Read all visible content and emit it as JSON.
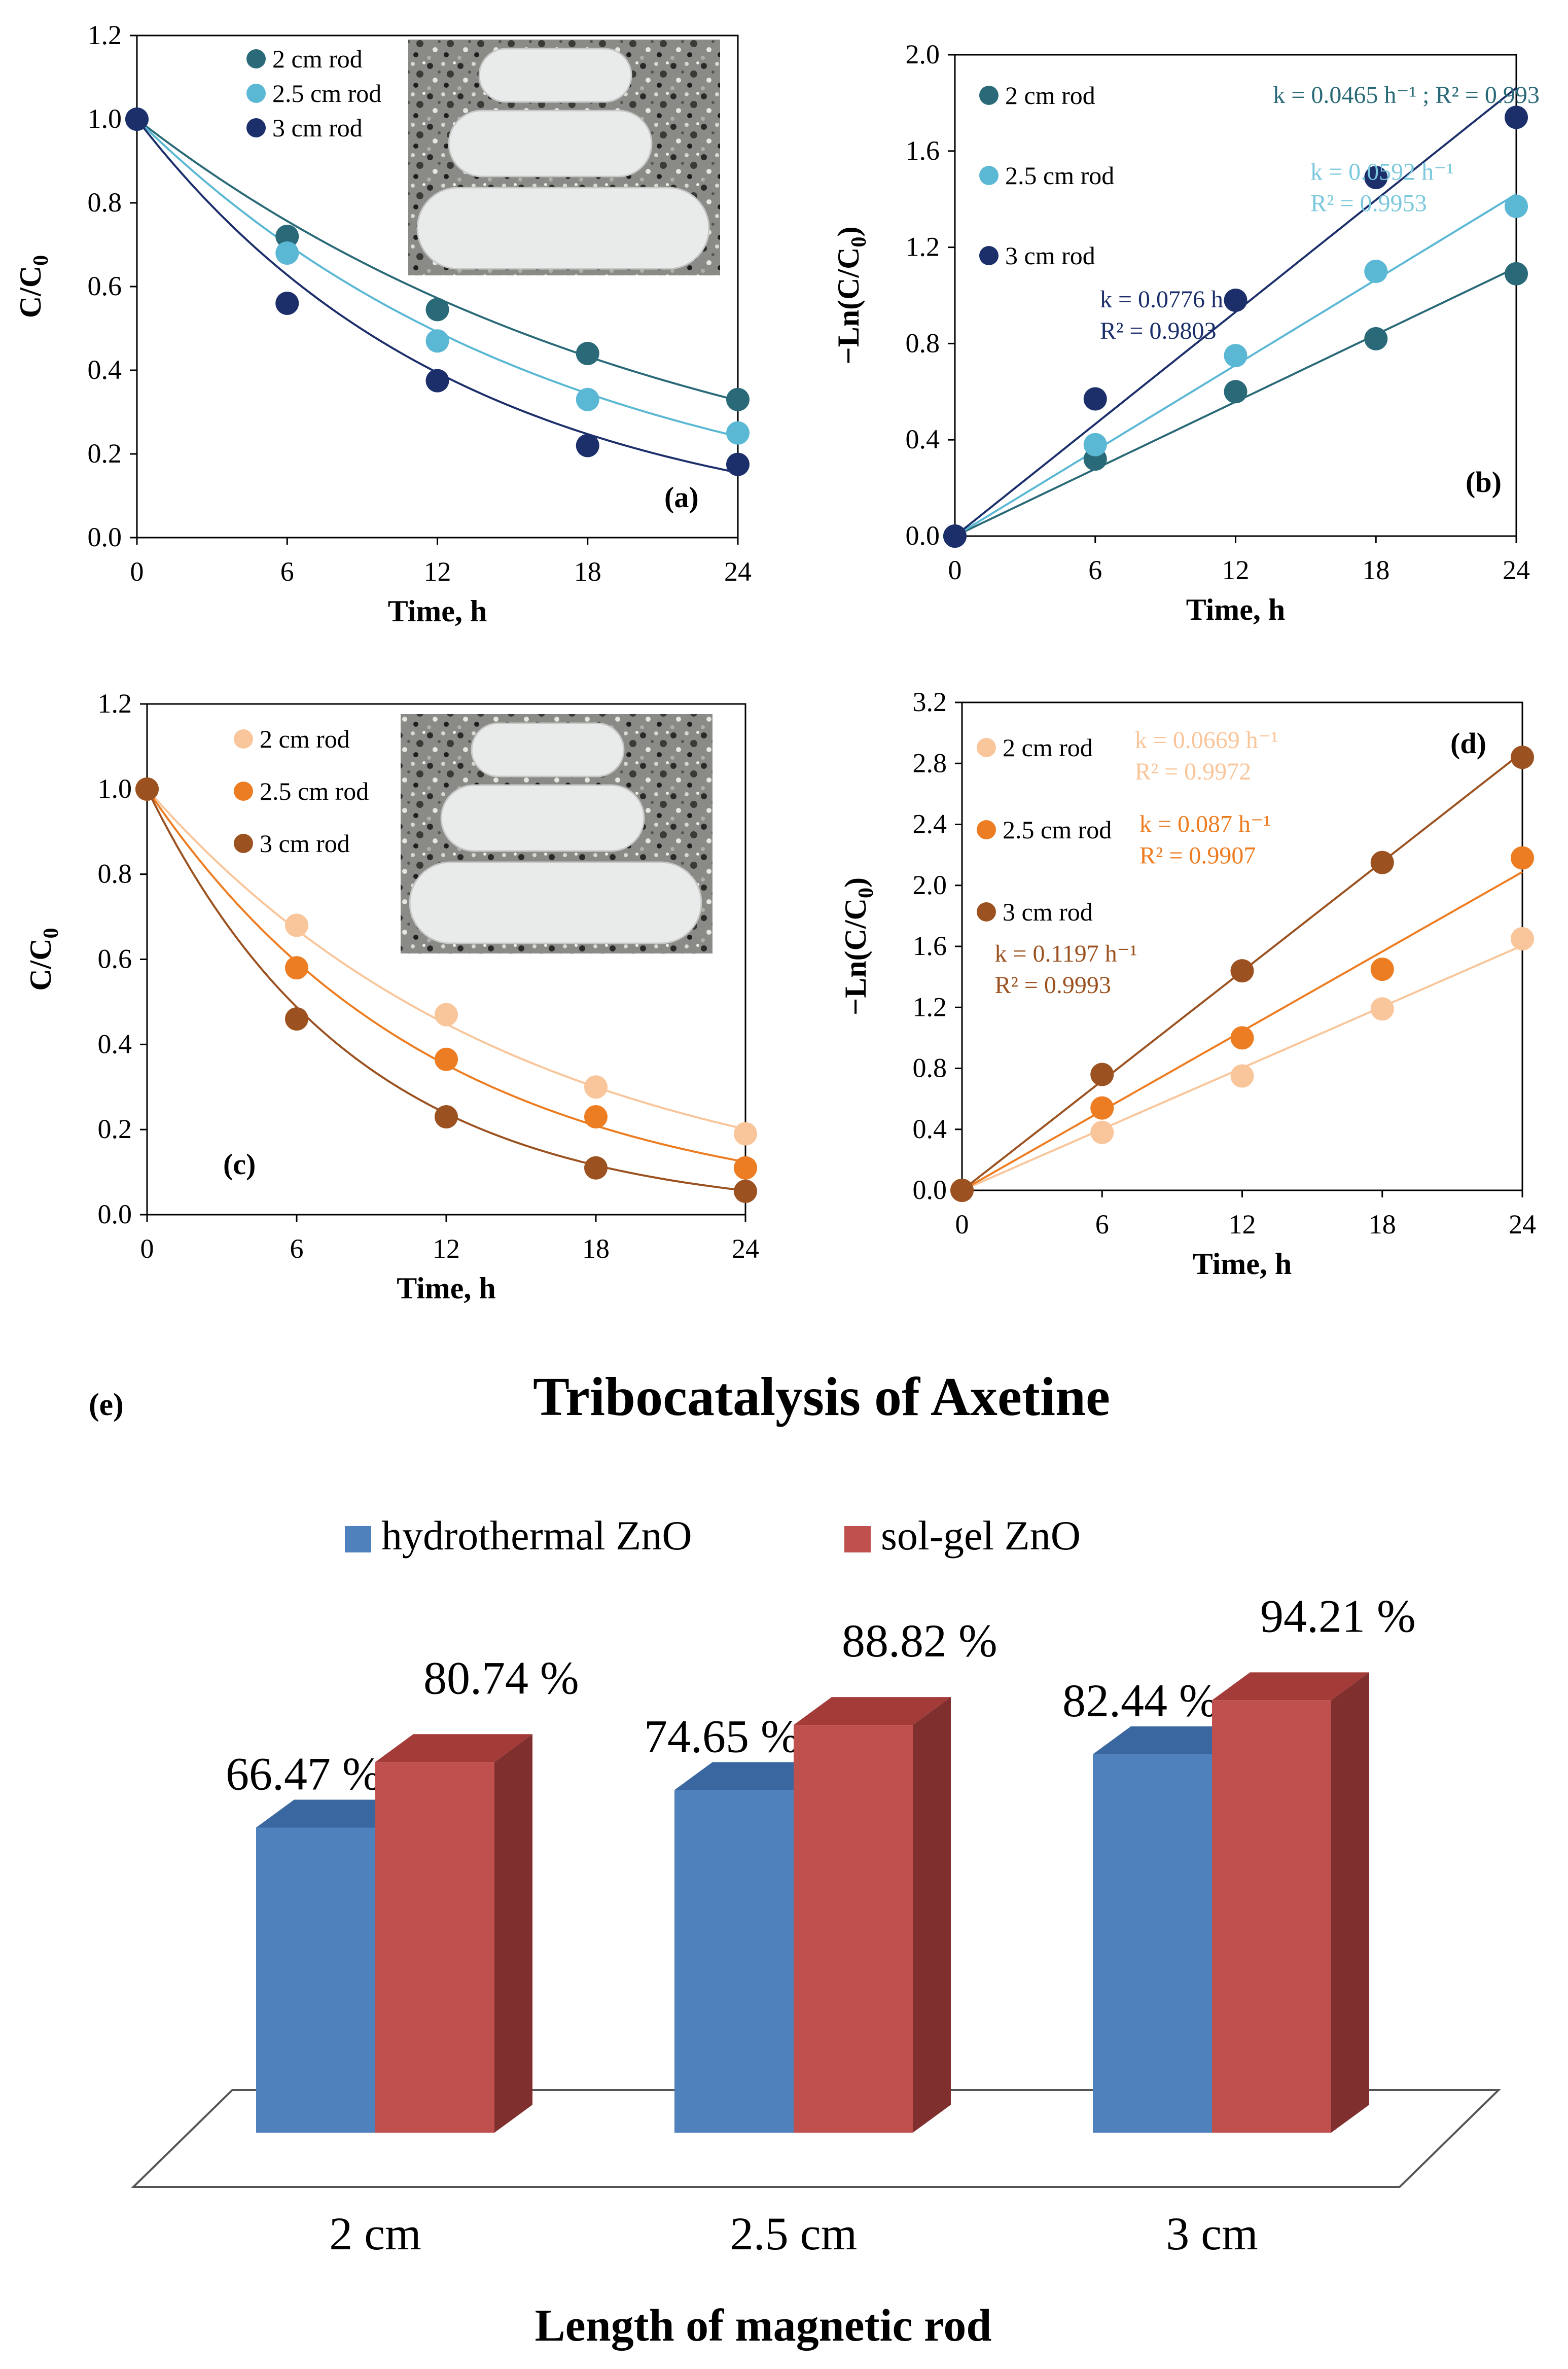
{
  "chart_data": [
    {
      "type": "scatter",
      "panel_label": "(a)",
      "xlabel": "Time, h",
      "ylabel_main": "C/C",
      "ylabel_sub": "0",
      "xlim": [
        0,
        24
      ],
      "ylim": [
        0,
        1.2
      ],
      "xticks": [
        0,
        6,
        12,
        18,
        24
      ],
      "yticks": [
        0.0,
        0.2,
        0.4,
        0.6,
        0.8,
        1.0,
        1.2
      ],
      "ytick_decimals": 1,
      "fit": "exp",
      "has_inset_photo": true,
      "series": [
        {
          "name": "2 cm rod",
          "color": "#2a6a78",
          "x": [
            0,
            6,
            12,
            18,
            24
          ],
          "y": [
            1.0,
            0.72,
            0.545,
            0.44,
            0.33
          ],
          "k": 0.0465
        },
        {
          "name": "2.5 cm rod",
          "color": "#5bb8d4",
          "x": [
            0,
            6,
            12,
            18,
            24
          ],
          "y": [
            1.0,
            0.68,
            0.47,
            0.33,
            0.25
          ],
          "k": 0.0592
        },
        {
          "name": "3 cm rod",
          "color": "#1c2f6b",
          "x": [
            0,
            6,
            12,
            18,
            24
          ],
          "y": [
            1.0,
            0.56,
            0.375,
            0.22,
            0.175
          ],
          "k": 0.0776
        }
      ],
      "annotations": []
    },
    {
      "type": "scatter",
      "panel_label": "(b)",
      "xlabel": "Time, h",
      "ylabel_main": "−Ln(C/C",
      "ylabel_sub": "0",
      "ylabel_tail": ")",
      "xlim": [
        0,
        24
      ],
      "ylim": [
        0,
        2.0
      ],
      "xticks": [
        0,
        6,
        12,
        18,
        24
      ],
      "yticks": [
        0.0,
        0.4,
        0.8,
        1.2,
        1.6,
        2.0
      ],
      "ytick_decimals": 1,
      "fit": "linear",
      "has_inset_photo": false,
      "series": [
        {
          "name": "2 cm rod",
          "color": "#2a6a78",
          "x": [
            0,
            6,
            12,
            18,
            24
          ],
          "y": [
            0.0,
            0.32,
            0.6,
            0.82,
            1.09
          ],
          "k": 0.0465
        },
        {
          "name": "2.5 cm rod",
          "color": "#5bb8d4",
          "x": [
            0,
            6,
            12,
            18,
            24
          ],
          "y": [
            0.0,
            0.38,
            0.75,
            1.1,
            1.37
          ],
          "k": 0.0592
        },
        {
          "name": "3 cm rod",
          "color": "#1c2f6b",
          "x": [
            0,
            6,
            12,
            18,
            24
          ],
          "y": [
            0.0,
            0.57,
            0.98,
            1.49,
            1.74
          ],
          "k": 0.0776
        }
      ],
      "annotations": [
        {
          "lines": [
            "k = 0.0465 h⁻¹ ; R² = 0.993"
          ],
          "color": "#2a6a78",
          "at": [
            13.6,
            1.8
          ]
        },
        {
          "lines": [
            "k = 0.0592 h⁻¹",
            "R² = 0.9953"
          ],
          "color": "#7cc8dc",
          "at": [
            15.2,
            1.48
          ]
        },
        {
          "lines": [
            "k = 0.0776 h⁻¹",
            "R² = 0.9803"
          ],
          "color": "#1c2f6b",
          "at": [
            6.2,
            0.95
          ]
        }
      ]
    },
    {
      "type": "scatter",
      "panel_label": "(c)",
      "xlabel": "Time, h",
      "ylabel_main": "C/C",
      "ylabel_sub": "0",
      "xlim": [
        0,
        24
      ],
      "ylim": [
        0,
        1.2
      ],
      "xticks": [
        0,
        6,
        12,
        18,
        24
      ],
      "yticks": [
        0.0,
        0.2,
        0.4,
        0.6,
        0.8,
        1.0,
        1.2
      ],
      "ytick_decimals": 1,
      "fit": "exp",
      "has_inset_photo": true,
      "series": [
        {
          "name": "2 cm rod",
          "color": "#f9c59a",
          "x": [
            0,
            6,
            12,
            18,
            24
          ],
          "y": [
            1.0,
            0.68,
            0.47,
            0.3,
            0.19
          ],
          "k": 0.0669
        },
        {
          "name": "2.5 cm rod",
          "color": "#ed7d22",
          "x": [
            0,
            6,
            12,
            18,
            24
          ],
          "y": [
            1.0,
            0.58,
            0.365,
            0.23,
            0.11
          ],
          "k": 0.087
        },
        {
          "name": "3 cm rod",
          "color": "#9c5220",
          "x": [
            0,
            6,
            12,
            18,
            24
          ],
          "y": [
            1.0,
            0.46,
            0.23,
            0.11,
            0.055
          ],
          "k": 0.1197
        }
      ],
      "annotations": []
    },
    {
      "type": "scatter",
      "panel_label": "(d)",
      "xlabel": "Time, h",
      "ylabel_main": "−Ln(C/C",
      "ylabel_sub": "0",
      "ylabel_tail": ")",
      "xlim": [
        0,
        24
      ],
      "ylim": [
        0,
        3.2
      ],
      "xticks": [
        0,
        6,
        12,
        18,
        24
      ],
      "yticks": [
        0.0,
        0.4,
        0.8,
        1.2,
        1.6,
        2.0,
        2.4,
        2.8,
        3.2
      ],
      "ytick_decimals": 1,
      "fit": "linear",
      "has_inset_photo": false,
      "series": [
        {
          "name": "2 cm rod",
          "color": "#f9c59a",
          "x": [
            0,
            6,
            12,
            18,
            24
          ],
          "y": [
            0.0,
            0.38,
            0.75,
            1.19,
            1.65
          ],
          "k": 0.0669
        },
        {
          "name": "2.5 cm rod",
          "color": "#ed7d22",
          "x": [
            0,
            6,
            12,
            18,
            24
          ],
          "y": [
            0.0,
            0.54,
            1.0,
            1.45,
            2.18
          ],
          "k": 0.087
        },
        {
          "name": "3 cm rod",
          "color": "#9c5220",
          "x": [
            0,
            6,
            12,
            18,
            24
          ],
          "y": [
            0.0,
            0.76,
            1.44,
            2.15,
            2.84
          ],
          "k": 0.1197
        }
      ],
      "annotations": [
        {
          "lines": [
            "k = 0.0669 h⁻¹",
            "R² = 0.9972"
          ],
          "color": "#f9c59a",
          "at": [
            7.4,
            2.9
          ]
        },
        {
          "lines": [
            "k = 0.087 h⁻¹",
            "R² = 0.9907"
          ],
          "color": "#ed7d22",
          "at": [
            7.6,
            2.35
          ]
        },
        {
          "lines": [
            "k = 0.1197 h⁻¹",
            "R² = 0.9993"
          ],
          "color": "#9c5220",
          "at": [
            1.4,
            1.5
          ]
        }
      ]
    },
    {
      "type": "bar",
      "panel_label": "(e)",
      "title": "Tribocatalysis  of Axetine",
      "xlabel": "Length of magnetic rod",
      "categories": [
        "2 cm",
        "2.5 cm",
        "3 cm"
      ],
      "ylim": [
        0,
        100
      ],
      "series": [
        {
          "name": "hydrothermal ZnO",
          "color": "#4f81bd",
          "values": [
            66.47,
            74.65,
            82.44
          ],
          "labels": [
            "66.47 %",
            "74.65 %",
            "82.44 %"
          ]
        },
        {
          "name": "sol-gel ZnO",
          "color": "#c0504d",
          "values": [
            80.74,
            88.82,
            94.21
          ],
          "labels": [
            "80.74 %",
            "88.82 %",
            "94.21 %"
          ]
        }
      ]
    }
  ]
}
